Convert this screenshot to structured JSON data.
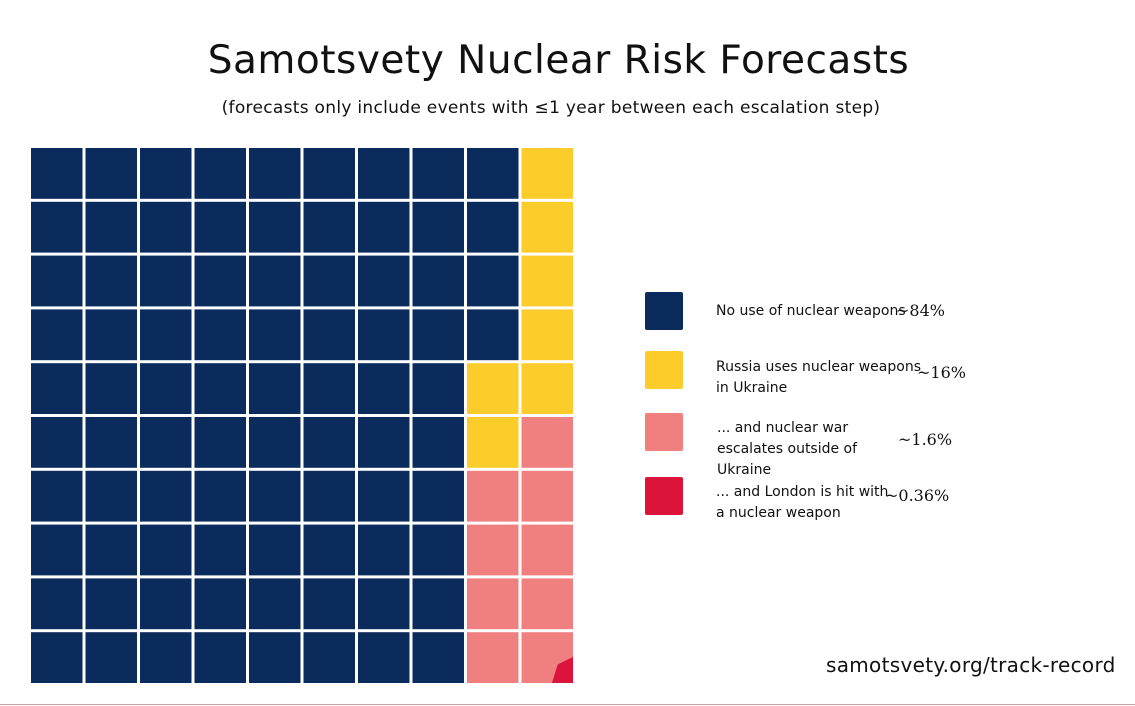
{
  "title": "Samotsvety Nuclear Risk Forecasts",
  "subtitle": "(forecasts only include events with ≤1 year between each escalation step)",
  "source": "samotsvety.org/track-record",
  "chart_data": {
    "type": "waffle",
    "grid": {
      "rows": 10,
      "cols": 10
    },
    "categories": [
      {
        "label": "No use of nuclear weapons",
        "value_label": "~84%",
        "percent": 84,
        "color": "#0b2b5c"
      },
      {
        "label": "Russia uses nuclear weapons in Ukraine",
        "value_label": "~16%",
        "percent": 16,
        "color": "#fccd2a"
      },
      {
        "label": "... and nuclear war escalates outside of Ukraine",
        "value_label": "~1.6%",
        "percent": 1.6,
        "color": "#f08080"
      },
      {
        "label": "... and London is hit with a nuclear weapon",
        "value_label": "~0.36%",
        "percent": 0.36,
        "color": "#dc143c"
      }
    ],
    "legend_position": "right"
  }
}
